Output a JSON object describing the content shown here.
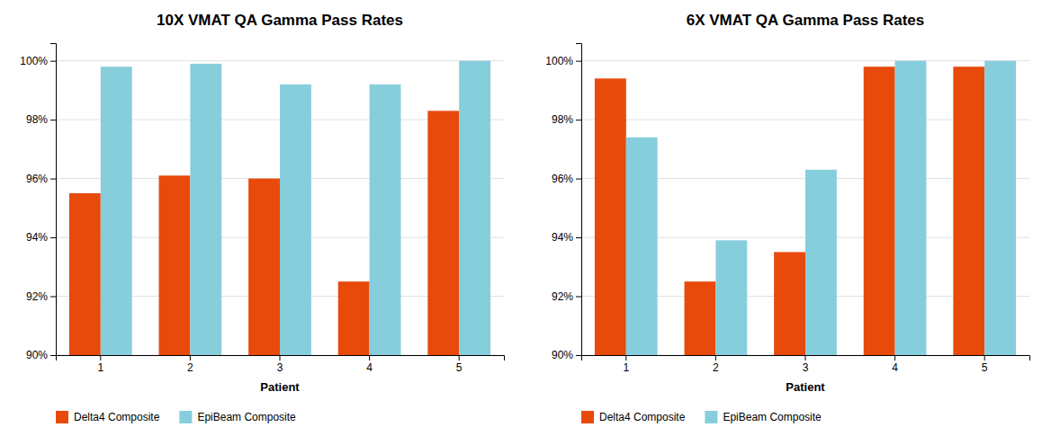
{
  "chart_data": [
    {
      "type": "bar",
      "title": "10X VMAT QA Gamma Pass Rates",
      "xlabel": "Patient",
      "categories": [
        "1",
        "2",
        "3",
        "4",
        "5"
      ],
      "series": [
        {
          "name": "Delta4 Composite",
          "color": "#E84A0C",
          "values": [
            95.5,
            96.1,
            96.0,
            92.5,
            98.3
          ]
        },
        {
          "name": "EpiBeam Composite",
          "color": "#87CEDC",
          "values": [
            99.8,
            99.9,
            99.2,
            99.2,
            100.0
          ]
        }
      ],
      "ylim": [
        90,
        100.6
      ],
      "yticks": [
        {
          "value": 90,
          "label": "90%"
        },
        {
          "value": 92,
          "label": "92%"
        },
        {
          "value": 94,
          "label": "94%"
        },
        {
          "value": 96,
          "label": "96%"
        },
        {
          "value": 98,
          "label": "98%"
        },
        {
          "value": 100,
          "label": "100%"
        }
      ],
      "grid": true,
      "legend": "bottom"
    },
    {
      "type": "bar",
      "title": "6X VMAT QA Gamma Pass Rates",
      "xlabel": "Patient",
      "categories": [
        "1",
        "2",
        "3",
        "4",
        "5"
      ],
      "series": [
        {
          "name": "Delta4 Composite",
          "color": "#E84A0C",
          "values": [
            99.4,
            92.5,
            93.5,
            99.8,
            99.8
          ]
        },
        {
          "name": "EpiBeam Composite",
          "color": "#87CEDC",
          "values": [
            97.4,
            93.9,
            96.3,
            100.0,
            100.0
          ]
        }
      ],
      "ylim": [
        90,
        100.6
      ],
      "yticks": [
        {
          "value": 90,
          "label": "90%"
        },
        {
          "value": 92,
          "label": "92%"
        },
        {
          "value": 94,
          "label": "94%"
        },
        {
          "value": 96,
          "label": "96%"
        },
        {
          "value": 98,
          "label": "98%"
        },
        {
          "value": 100,
          "label": "100%"
        }
      ],
      "grid": true,
      "legend": "bottom"
    }
  ]
}
